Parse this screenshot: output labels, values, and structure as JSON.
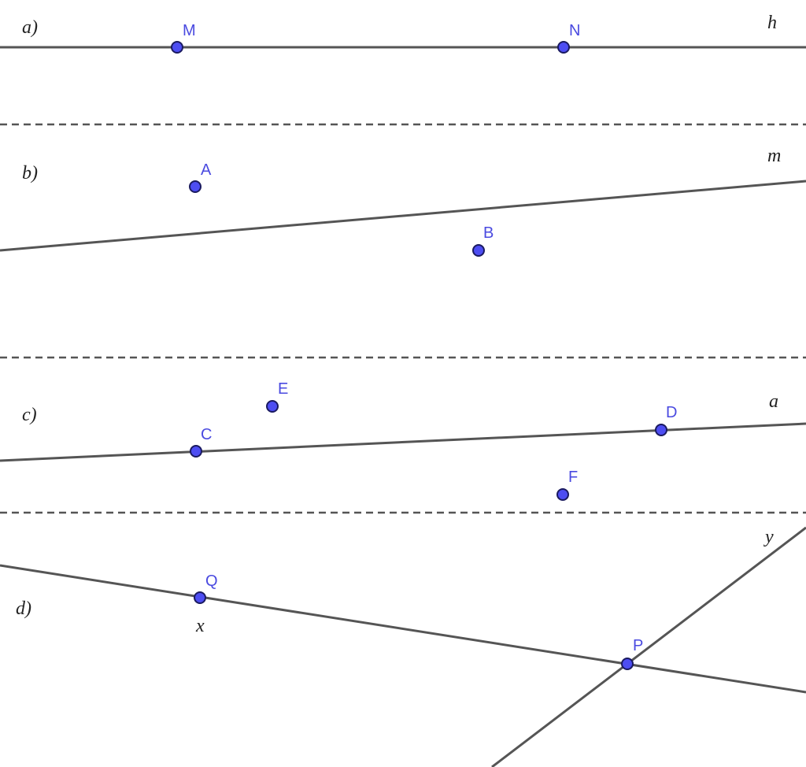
{
  "sections": [
    {
      "tag": "a)",
      "lines": [
        "h"
      ],
      "points": [
        "M",
        "N"
      ]
    },
    {
      "tag": "b)",
      "lines": [
        "m"
      ],
      "points": [
        "A",
        "B"
      ]
    },
    {
      "tag": "c)",
      "lines": [
        "a"
      ],
      "points": [
        "E",
        "D",
        "C",
        "F"
      ]
    },
    {
      "tag": "d)",
      "lines": [
        "x",
        "y"
      ],
      "points": [
        "Q",
        "P"
      ]
    }
  ]
}
